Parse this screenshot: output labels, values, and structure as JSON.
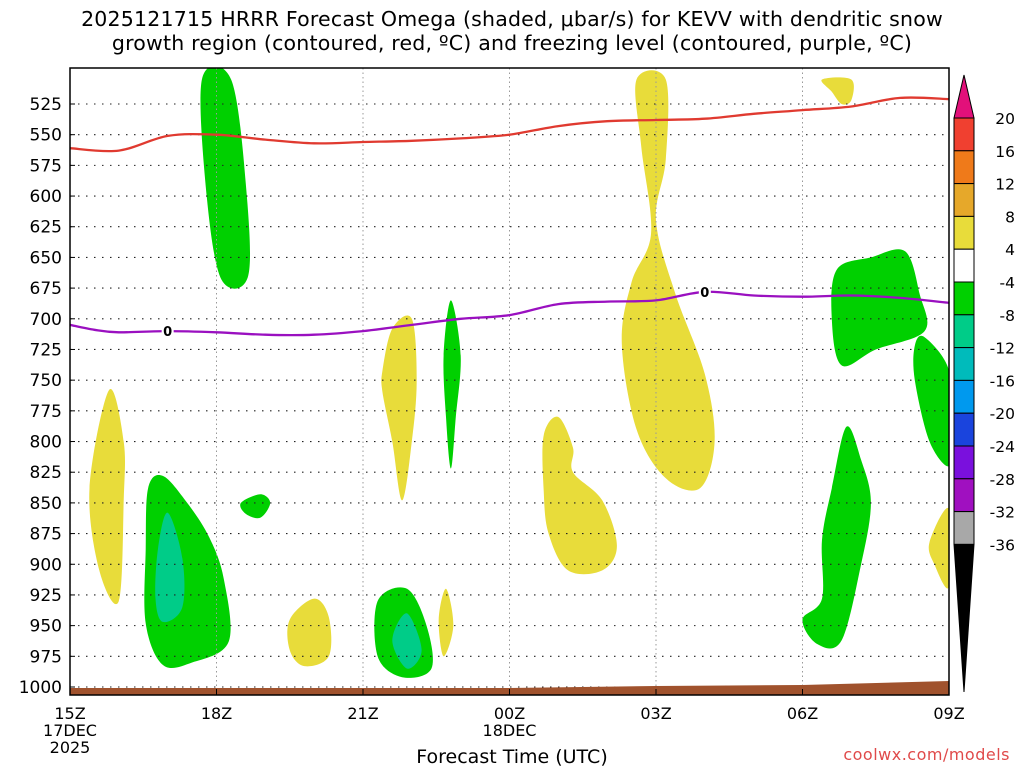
{
  "title": {
    "line1": "2025121715 HRRR Forecast Omega (shaded, μbar/s) for KEVV with dendritic snow",
    "line2": "growth region (contoured, red, ºC) and freezing level (contoured, purple, ºC)"
  },
  "credit": "coolwx.com/models",
  "chart_data": {
    "type": "time-height contour",
    "title": "2025121715 HRRR Forecast Omega (shaded, μbar/s) for KEVV with dendritic snow growth region (contoured, red, ºC) and freezing level (contoured, purple, ºC)",
    "xlabel": "Forecast Time (UTC)",
    "ylabel": "",
    "x_range_hours": [
      0,
      18
    ],
    "y_range_hpa": [
      1010,
      510
    ],
    "y_ticks": [
      525,
      550,
      575,
      600,
      625,
      650,
      675,
      700,
      725,
      750,
      775,
      800,
      825,
      850,
      875,
      900,
      925,
      950,
      975,
      1000
    ],
    "x_ticks": [
      {
        "h": 0,
        "lines": [
          "15Z",
          "17DEC",
          "2025"
        ]
      },
      {
        "h": 3,
        "lines": [
          "18Z"
        ]
      },
      {
        "h": 6,
        "lines": [
          "21Z"
        ]
      },
      {
        "h": 9,
        "lines": [
          "00Z",
          "18DEC"
        ]
      },
      {
        "h": 12,
        "lines": [
          "03Z"
        ]
      },
      {
        "h": 15,
        "lines": [
          "06Z"
        ]
      },
      {
        "h": 18,
        "lines": [
          "09Z"
        ]
      }
    ],
    "grid": true,
    "colorbar": {
      "labels": [
        "20",
        "16",
        "12",
        "8",
        "4",
        "-4",
        "-8",
        "-12",
        "-16",
        "-20",
        "-24",
        "-28",
        "-32",
        "-36"
      ],
      "colors": [
        "#e2107a",
        "#f04030",
        "#ef7a1a",
        "#e6a82a",
        "#e8dc3a",
        "#ffffff",
        "#00d000",
        "#00cc88",
        "#00bbbb",
        "#0099ee",
        "#1a44dd",
        "#7a10dd",
        "#a010c0",
        "#a8a8a8",
        "#000000"
      ]
    },
    "freezing_level": {
      "label": "0",
      "color": "#9a10c0",
      "label_hours": [
        2.0,
        13.0
      ],
      "points": [
        [
          0,
          705
        ],
        [
          0.5,
          709
        ],
        [
          1,
          711
        ],
        [
          2,
          710
        ],
        [
          3,
          711
        ],
        [
          4,
          713
        ],
        [
          5,
          713
        ],
        [
          6,
          710
        ],
        [
          7,
          705
        ],
        [
          8,
          700
        ],
        [
          9,
          697
        ],
        [
          10,
          688
        ],
        [
          11,
          686
        ],
        [
          12,
          685
        ],
        [
          13,
          678
        ],
        [
          14,
          681
        ],
        [
          15,
          682
        ],
        [
          16,
          681
        ],
        [
          17,
          683
        ],
        [
          18,
          687
        ]
      ]
    },
    "dgz_contour": {
      "color": "#e03a30",
      "points": [
        [
          0,
          561
        ],
        [
          1,
          563
        ],
        [
          2,
          551
        ],
        [
          3,
          550
        ],
        [
          4,
          554
        ],
        [
          5,
          557
        ],
        [
          6,
          556
        ],
        [
          7,
          555
        ],
        [
          8,
          553
        ],
        [
          9,
          550
        ],
        [
          10,
          543
        ],
        [
          11,
          539
        ],
        [
          12,
          538
        ],
        [
          13,
          537
        ],
        [
          14,
          533
        ],
        [
          15,
          530
        ],
        [
          16,
          527
        ],
        [
          17,
          520
        ],
        [
          18,
          521
        ]
      ]
    },
    "terrain": {
      "color": "#a0522d",
      "label": "ground"
    },
    "shaded_regions": [
      {
        "level": "-8",
        "color": "#00d000",
        "points": [
          [
            2.7,
            505
          ],
          [
            3.3,
            505
          ],
          [
            3.6,
            590
          ],
          [
            3.65,
            665
          ],
          [
            3.1,
            668
          ],
          [
            2.8,
            600
          ]
        ]
      },
      {
        "level": "4",
        "color": "#e8dc3a",
        "points": [
          [
            0.4,
            838
          ],
          [
            0.8,
            758
          ],
          [
            1.1,
            800
          ],
          [
            1.1,
            848
          ],
          [
            1.0,
            930
          ],
          [
            0.6,
            905
          ]
        ]
      },
      {
        "level": "-8",
        "color": "#00d000",
        "points": [
          [
            1.6,
            838
          ],
          [
            1.9,
            828
          ],
          [
            2.4,
            850
          ],
          [
            2.85,
            878
          ],
          [
            3.15,
            912
          ],
          [
            3.25,
            963
          ],
          [
            2.5,
            980
          ],
          [
            1.9,
            982
          ],
          [
            1.55,
            948
          ],
          [
            1.55,
            888
          ]
        ]
      },
      {
        "level": "-12",
        "color": "#00cc88",
        "points": [
          [
            1.8,
            888
          ],
          [
            2.0,
            858
          ],
          [
            2.3,
            895
          ],
          [
            2.3,
            935
          ],
          [
            1.9,
            947
          ],
          [
            1.75,
            928
          ]
        ]
      },
      {
        "level": "-8",
        "color": "#00d000",
        "points": [
          [
            3.5,
            850
          ],
          [
            3.9,
            843
          ],
          [
            4.1,
            850
          ],
          [
            3.9,
            862
          ],
          [
            3.6,
            859
          ]
        ]
      },
      {
        "level": "4",
        "color": "#e8dc3a",
        "points": [
          [
            4.5,
            945
          ],
          [
            5.0,
            928
          ],
          [
            5.3,
            943
          ],
          [
            5.3,
            975
          ],
          [
            4.8,
            983
          ],
          [
            4.5,
            970
          ]
        ]
      },
      {
        "level": "-8",
        "color": "#00d000",
        "points": [
          [
            6.3,
            930
          ],
          [
            6.9,
            920
          ],
          [
            7.3,
            950
          ],
          [
            7.4,
            985
          ],
          [
            6.8,
            992
          ],
          [
            6.3,
            975
          ]
        ]
      },
      {
        "level": "-12",
        "color": "#00cc88",
        "points": [
          [
            6.6,
            962
          ],
          [
            6.9,
            940
          ],
          [
            7.2,
            970
          ],
          [
            6.9,
            985
          ]
        ]
      },
      {
        "level": "4",
        "color": "#e8dc3a",
        "points": [
          [
            7.55,
            945
          ],
          [
            7.7,
            920
          ],
          [
            7.85,
            950
          ],
          [
            7.65,
            975
          ]
        ]
      },
      {
        "level": "4",
        "color": "#e8dc3a",
        "points": [
          [
            6.4,
            742
          ],
          [
            6.6,
            708
          ],
          [
            7.0,
            700
          ],
          [
            7.1,
            750
          ],
          [
            7.0,
            800
          ],
          [
            6.8,
            848
          ],
          [
            6.6,
            800
          ],
          [
            6.4,
            760
          ]
        ]
      },
      {
        "level": "-8",
        "color": "#00d000",
        "points": [
          [
            7.65,
            730
          ],
          [
            7.8,
            685
          ],
          [
            8.0,
            730
          ],
          [
            7.9,
            780
          ],
          [
            7.8,
            822
          ],
          [
            7.7,
            780
          ]
        ]
      },
      {
        "level": "4",
        "color": "#e8dc3a",
        "points": [
          [
            9.7,
            795
          ],
          [
            10.0,
            780
          ],
          [
            10.3,
            805
          ],
          [
            10.3,
            825
          ],
          [
            10.9,
            848
          ],
          [
            11.2,
            885
          ],
          [
            10.9,
            905
          ],
          [
            10.2,
            905
          ],
          [
            9.8,
            875
          ],
          [
            9.7,
            840
          ]
        ]
      },
      {
        "level": "4",
        "color": "#e8dc3a",
        "points": [
          [
            11.6,
            505
          ],
          [
            12.2,
            505
          ],
          [
            12.2,
            570
          ],
          [
            12.0,
            620
          ],
          [
            12.4,
            680
          ],
          [
            13.0,
            745
          ],
          [
            13.2,
            800
          ],
          [
            12.9,
            838
          ],
          [
            12.2,
            830
          ],
          [
            11.6,
            790
          ],
          [
            11.3,
            720
          ],
          [
            11.5,
            670
          ],
          [
            11.9,
            630
          ],
          [
            11.7,
            560
          ]
        ]
      },
      {
        "level": "-8",
        "color": "#00d000",
        "points": [
          [
            15.7,
            660
          ],
          [
            16.4,
            650
          ],
          [
            17.1,
            645
          ],
          [
            17.4,
            680
          ],
          [
            17.5,
            710
          ],
          [
            16.5,
            725
          ],
          [
            15.8,
            738
          ],
          [
            15.6,
            700
          ]
        ]
      },
      {
        "level": "-8",
        "color": "#00d000",
        "points": [
          [
            17.5,
            715
          ],
          [
            18.0,
            742
          ],
          [
            18.0,
            788
          ],
          [
            18.0,
            820
          ],
          [
            17.6,
            800
          ],
          [
            17.3,
            750
          ],
          [
            17.3,
            722
          ]
        ]
      },
      {
        "level": "-8",
        "color": "#00d000",
        "points": [
          [
            15.6,
            838
          ],
          [
            15.9,
            788
          ],
          [
            16.2,
            815
          ],
          [
            16.4,
            850
          ],
          [
            16.2,
            900
          ],
          [
            15.8,
            962
          ],
          [
            15.3,
            965
          ],
          [
            15.0,
            945
          ],
          [
            15.4,
            928
          ],
          [
            15.4,
            880
          ]
        ]
      },
      {
        "level": "4",
        "color": "#e8dc3a",
        "points": [
          [
            17.6,
            882
          ],
          [
            18.0,
            855
          ],
          [
            18.0,
            918
          ],
          [
            17.7,
            900
          ]
        ]
      },
      {
        "level": "4",
        "color": "#e8dc3a",
        "points": [
          [
            15.4,
            505
          ],
          [
            16.0,
            505
          ],
          [
            16.0,
            522
          ],
          [
            15.8,
            525
          ],
          [
            15.6,
            515
          ]
        ]
      }
    ]
  }
}
